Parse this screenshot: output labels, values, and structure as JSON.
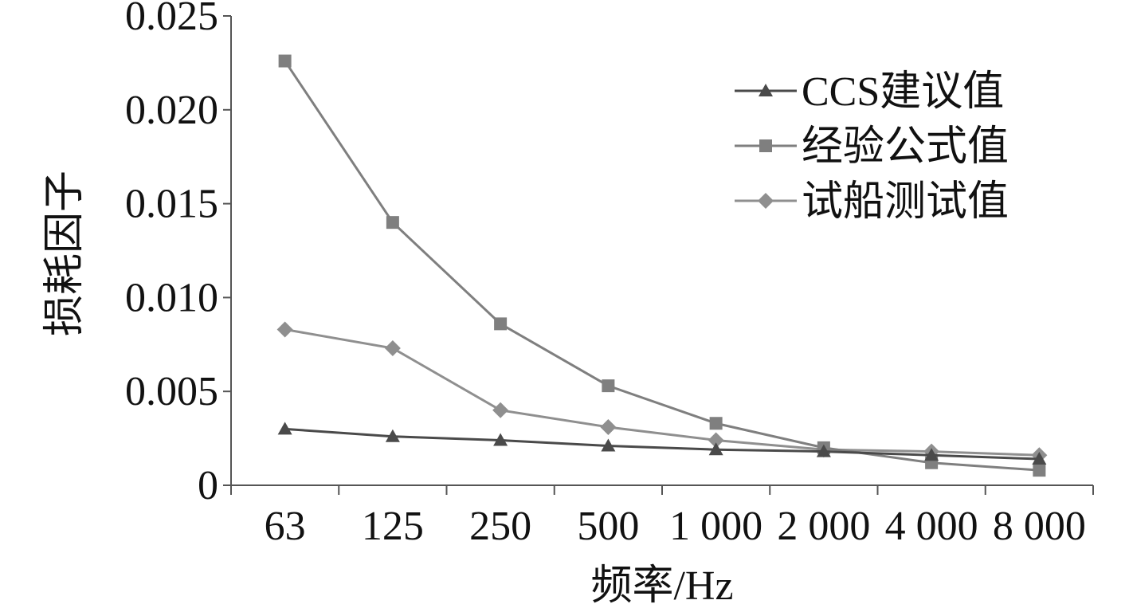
{
  "chart_data": {
    "type": "line",
    "title": "",
    "xlabel": "频率/Hz",
    "ylabel": "损耗因子",
    "categories": [
      "63",
      "125",
      "250",
      "500",
      "1 000",
      "2 000",
      "4 000",
      "8 000"
    ],
    "ylim": [
      0,
      0.025
    ],
    "yticks": [
      "0",
      "0.005",
      "0.010",
      "0.015",
      "0.020",
      "0.025"
    ],
    "grid": false,
    "legend_position": "top-right",
    "series": [
      {
        "name": "CCS建议值",
        "marker": "triangle",
        "color": "#4a4a4a",
        "values": [
          0.003,
          0.0026,
          0.0024,
          0.0021,
          0.0019,
          0.0018,
          0.0016,
          0.0014
        ]
      },
      {
        "name": "经验公式值",
        "marker": "square",
        "color": "#7f7f7f",
        "values": [
          0.0226,
          0.014,
          0.0086,
          0.0053,
          0.0033,
          0.002,
          0.0012,
          0.0008
        ]
      },
      {
        "name": "试船测试值",
        "marker": "diamond",
        "color": "#8f8f8f",
        "values": [
          0.0083,
          0.0073,
          0.004,
          0.0031,
          0.0024,
          0.0019,
          0.0018,
          0.0016
        ]
      }
    ]
  }
}
